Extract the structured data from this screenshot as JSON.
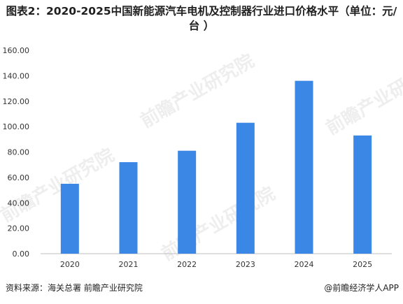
{
  "header": {
    "title": "图表2：2020-2025中国新能源汽车电机及控制器行业进口价格水平（单位：元/台 ）"
  },
  "watermark": {
    "text": "前瞻产业研究院"
  },
  "footer": {
    "source": "资料来源：海关总署  前瞻产业研究院",
    "brand": "@前瞻经济学人APP"
  },
  "colors": {
    "bar": "#3b87e6",
    "axis": "#bfbfbf",
    "tick_text": "#333333"
  },
  "chart_data": {
    "type": "bar",
    "title": "图表2：2020-2025中国新能源汽车电机及控制器行业进口价格水平（单位：元/台 ）",
    "xlabel": "",
    "ylabel": "",
    "categories": [
      "2020",
      "2021",
      "2022",
      "2023",
      "2024",
      "2025"
    ],
    "values": [
      55,
      72,
      81,
      103,
      136,
      93
    ],
    "ylim": [
      0,
      160
    ],
    "yticks": [
      "0.00",
      "20.00",
      "40.00",
      "60.00",
      "80.00",
      "100.00",
      "120.00",
      "140.00",
      "160.00"
    ],
    "grid": false,
    "legend": "none"
  }
}
